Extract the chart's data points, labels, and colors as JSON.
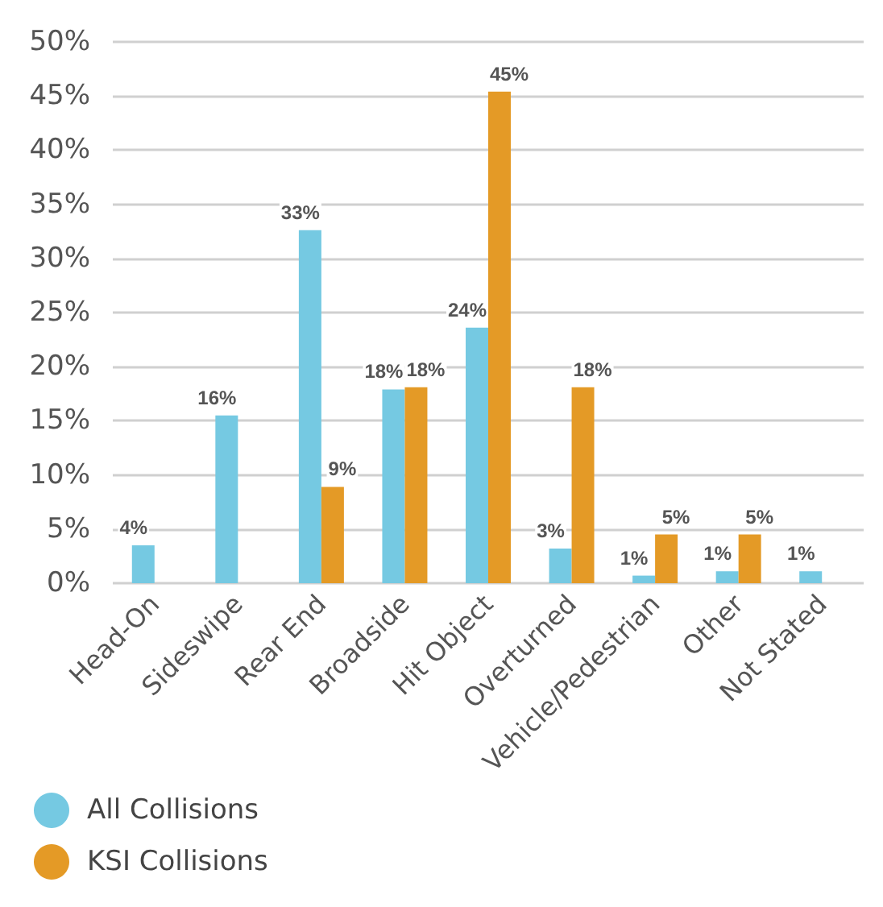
{
  "chart_data": {
    "type": "bar",
    "categories": [
      "Head-On",
      "Sideswipe",
      "Rear End",
      "Broadside",
      "Hit Object",
      "Overturned",
      "Vehicle/Pedestrian",
      "Other",
      "Not Stated"
    ],
    "series": [
      {
        "name": "All Collisions",
        "color": "#75c9e2",
        "values": [
          3.5,
          15.5,
          32.6,
          17.9,
          23.6,
          3.2,
          0.7,
          1.1,
          1.1
        ],
        "value_labels": [
          "4%",
          "16%",
          "33%",
          "18%",
          "24%",
          "3%",
          "1%",
          "1%",
          "1%"
        ]
      },
      {
        "name": "KSI Collisions",
        "color": "#e49a26",
        "values": [
          null,
          null,
          8.9,
          18.1,
          45.4,
          18.1,
          4.5,
          4.5,
          null
        ],
        "value_labels": [
          null,
          null,
          "9%",
          "18%",
          "45%",
          "18%",
          "5%",
          "5%",
          null
        ]
      }
    ],
    "ylim": [
      0,
      50
    ],
    "yticks": [
      {
        "value": 0,
        "label": "0%"
      },
      {
        "value": 5,
        "label": "5%"
      },
      {
        "value": 10,
        "label": "10%"
      },
      {
        "value": 15,
        "label": "15%"
      },
      {
        "value": 20,
        "label": "20%"
      },
      {
        "value": 25,
        "label": "25%"
      },
      {
        "value": 30,
        "label": "30%"
      },
      {
        "value": 35,
        "label": "35%"
      },
      {
        "value": 40,
        "label": "40%"
      },
      {
        "value": 45,
        "label": "45%"
      },
      {
        "value": 50,
        "label": "50%"
      }
    ],
    "grid": "y",
    "legend": "bottom left"
  }
}
